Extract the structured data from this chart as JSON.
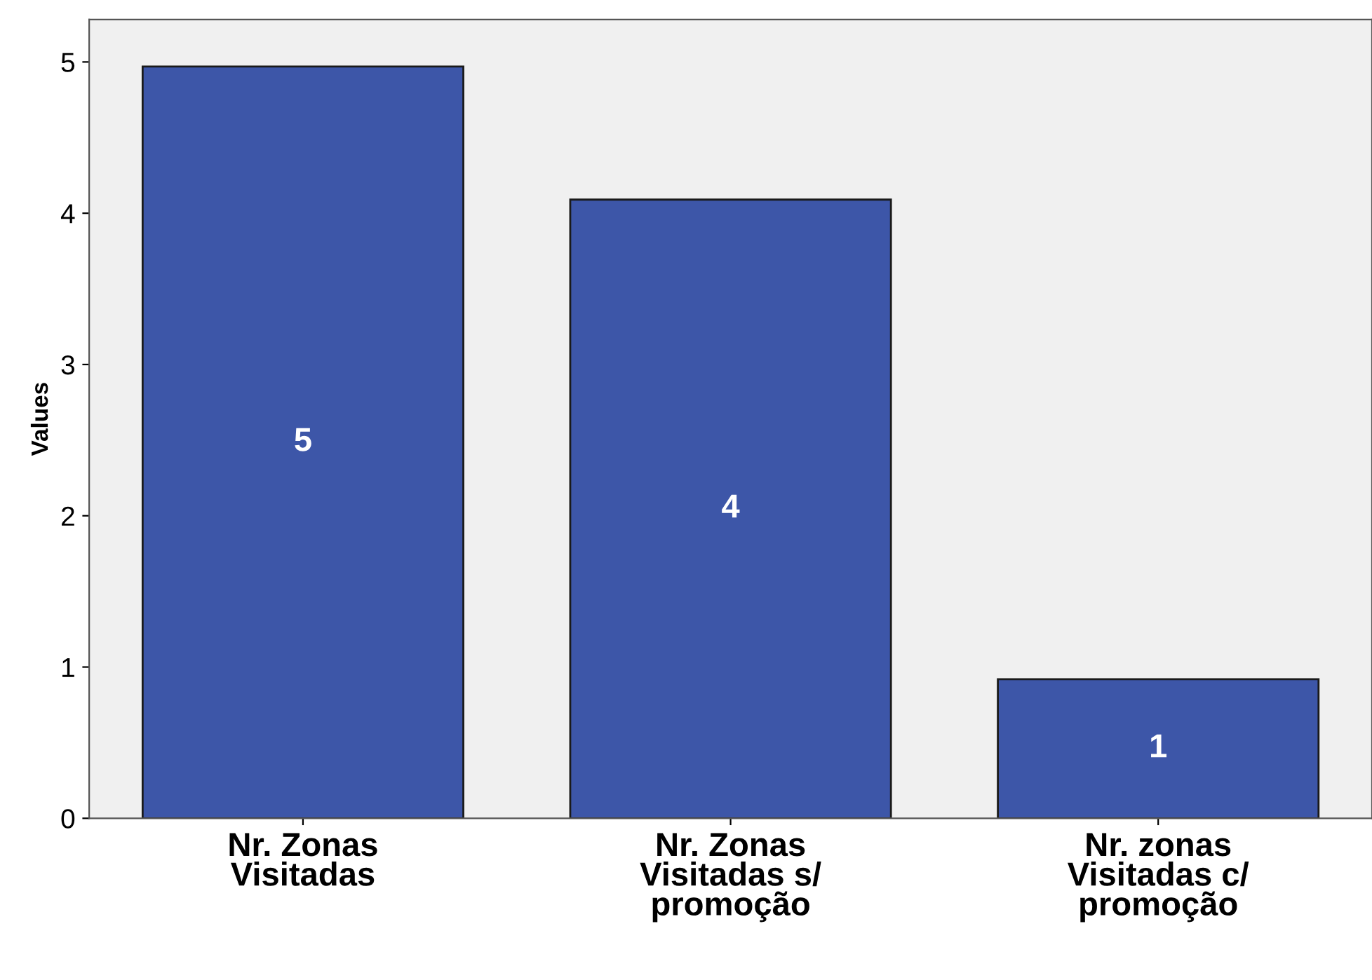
{
  "chart_data": {
    "type": "bar",
    "ylabel": "Values",
    "categories": [
      "Nr. Zonas\nVisitadas",
      "Nr. Zonas\nVisitadas s/\npromoção",
      "Nr. zonas\nVisitadas c/\npromoção"
    ],
    "values": [
      4.97,
      4.09,
      0.92
    ],
    "value_labels": [
      "5",
      "4",
      "1"
    ],
    "color": "#3d56a8",
    "ylim": [
      0,
      5.28
    ],
    "yticks": [
      0,
      1,
      2,
      3,
      4,
      5
    ],
    "grid": false,
    "legend": false
  }
}
